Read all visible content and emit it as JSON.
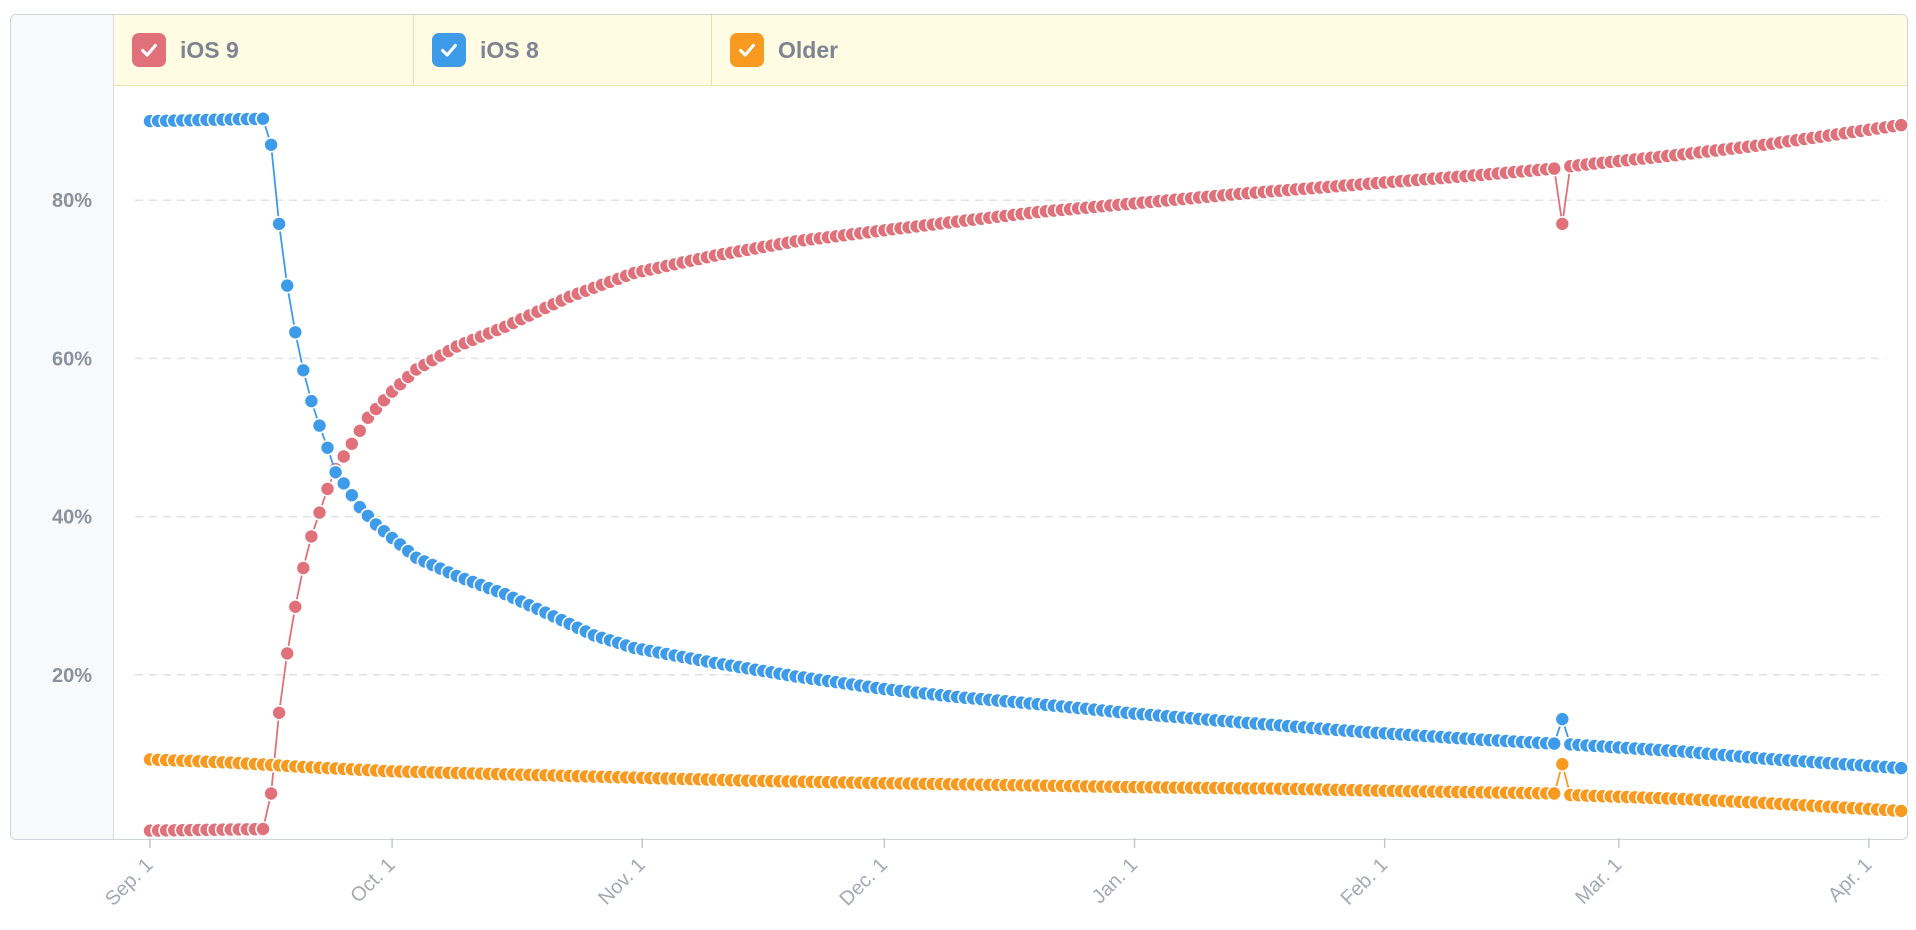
{
  "legend": [
    {
      "label": "iOS 9",
      "color": "#e07079"
    },
    {
      "label": "iOS 8",
      "color": "#3d9be9"
    },
    {
      "label": "Older",
      "color": "#f79a1f"
    }
  ],
  "chart_data": {
    "type": "line",
    "title": "",
    "xlabel": "",
    "ylabel": "",
    "ylim": [
      0,
      92
    ],
    "y_ticks": [
      {
        "value": 20,
        "label": "20%"
      },
      {
        "value": 40,
        "label": "40%"
      },
      {
        "value": 60,
        "label": "60%"
      },
      {
        "value": 80,
        "label": "80%"
      }
    ],
    "x_ticks": [
      {
        "day": 0,
        "label": "Sep. 1"
      },
      {
        "day": 30,
        "label": "Oct. 1"
      },
      {
        "day": 61,
        "label": "Nov. 1"
      },
      {
        "day": 91,
        "label": "Dec. 1"
      },
      {
        "day": 122,
        "label": "Jan. 1"
      },
      {
        "day": 153,
        "label": "Feb. 1"
      },
      {
        "day": 182,
        "label": "Mar. 1"
      },
      {
        "day": 213,
        "label": "Apr. 1"
      }
    ],
    "x_unit": "days since Sep. 1",
    "xlim": [
      0,
      217
    ],
    "series": [
      {
        "name": "iOS 9",
        "color": "#e07079",
        "points": [
          [
            0,
            0.3
          ],
          [
            14,
            0.5
          ],
          [
            15,
            5
          ],
          [
            16,
            15.2
          ],
          [
            17,
            22.7
          ],
          [
            18,
            28.6
          ],
          [
            19,
            33.5
          ],
          [
            20,
            37.5
          ],
          [
            21,
            40.5
          ],
          [
            22,
            43.5
          ],
          [
            23,
            46
          ],
          [
            25,
            49.2
          ],
          [
            27,
            52.5
          ],
          [
            30,
            55.8
          ],
          [
            33,
            58.6
          ],
          [
            38,
            61.5
          ],
          [
            44,
            64
          ],
          [
            52,
            67.8
          ],
          [
            60,
            70.8
          ],
          [
            70,
            73
          ],
          [
            80,
            74.8
          ],
          [
            91,
            76.2
          ],
          [
            100,
            77.3
          ],
          [
            110,
            78.5
          ],
          [
            122,
            79.6
          ],
          [
            135,
            80.8
          ],
          [
            150,
            82
          ],
          [
            165,
            83.2
          ],
          [
            174,
            84
          ],
          [
            175,
            77
          ],
          [
            176,
            84.3
          ],
          [
            190,
            85.8
          ],
          [
            200,
            87
          ],
          [
            217,
            89.5
          ]
        ]
      },
      {
        "name": "iOS 8",
        "color": "#3d9be9",
        "points": [
          [
            0,
            90
          ],
          [
            14,
            90.3
          ],
          [
            15,
            87
          ],
          [
            16,
            77
          ],
          [
            17,
            69.2
          ],
          [
            18,
            63.3
          ],
          [
            19,
            58.5
          ],
          [
            20,
            54.6
          ],
          [
            21,
            51.5
          ],
          [
            22,
            48.7
          ],
          [
            23,
            45.6
          ],
          [
            24,
            44.2
          ],
          [
            26,
            41.2
          ],
          [
            28,
            39
          ],
          [
            30,
            37.3
          ],
          [
            33,
            34.8
          ],
          [
            38,
            32.5
          ],
          [
            44,
            30.2
          ],
          [
            50,
            27.4
          ],
          [
            55,
            25
          ],
          [
            60,
            23.4
          ],
          [
            70,
            21.5
          ],
          [
            80,
            19.8
          ],
          [
            91,
            18.2
          ],
          [
            100,
            17.2
          ],
          [
            110,
            16.3
          ],
          [
            122,
            15.1
          ],
          [
            135,
            14
          ],
          [
            150,
            12.8
          ],
          [
            165,
            11.8
          ],
          [
            174,
            11.3
          ],
          [
            175,
            14.4
          ],
          [
            176,
            11.2
          ],
          [
            190,
            10.3
          ],
          [
            200,
            9.4
          ],
          [
            217,
            8.2
          ]
        ]
      },
      {
        "name": "Older",
        "color": "#f79a1f",
        "points": [
          [
            0,
            9.3
          ],
          [
            10,
            8.9
          ],
          [
            20,
            8.3
          ],
          [
            30,
            7.8
          ],
          [
            45,
            7.4
          ],
          [
            60,
            7
          ],
          [
            75,
            6.6
          ],
          [
            91,
            6.3
          ],
          [
            110,
            6
          ],
          [
            122,
            5.8
          ],
          [
            140,
            5.6
          ],
          [
            155,
            5.3
          ],
          [
            174,
            5
          ],
          [
            175,
            8.7
          ],
          [
            176,
            4.8
          ],
          [
            190,
            4.3
          ],
          [
            200,
            3.8
          ],
          [
            217,
            2.8
          ]
        ]
      }
    ]
  }
}
